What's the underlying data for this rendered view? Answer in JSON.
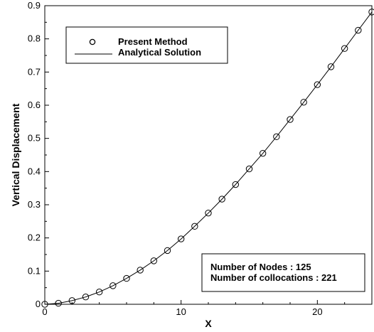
{
  "chart_data": {
    "type": "line",
    "xlabel": "X",
    "ylabel": "Vertical Displacement",
    "xlim": [
      0,
      24
    ],
    "ylim": [
      0,
      0.9
    ],
    "x_ticks": [
      0,
      10,
      20
    ],
    "x_tick_labels": [
      "0",
      "10",
      "20"
    ],
    "y_ticks": [
      0,
      0.1,
      0.2,
      0.3,
      0.4,
      0.5,
      0.6,
      0.7,
      0.8,
      0.9
    ],
    "y_tick_labels": [
      "0",
      "0.1",
      "0.2",
      "0.3",
      "0.4",
      "0.5",
      "0.6",
      "0.7",
      "0.8",
      "0.9"
    ],
    "grid": false,
    "legend_position": "top-left",
    "series": [
      {
        "name": "Present Method",
        "style": "markers",
        "marker": "circle",
        "x": [
          0,
          1,
          2,
          3,
          4,
          5,
          6,
          7,
          8,
          9,
          10,
          11,
          12,
          13,
          14,
          15,
          16,
          17,
          18,
          19,
          20,
          21,
          22,
          23,
          24
        ],
        "y": [
          0,
          0.003,
          0.011,
          0.022,
          0.037,
          0.056,
          0.078,
          0.103,
          0.131,
          0.162,
          0.197,
          0.235,
          0.275,
          0.317,
          0.361,
          0.408,
          0.455,
          0.505,
          0.557,
          0.609,
          0.662,
          0.716,
          0.771,
          0.826,
          0.881
        ]
      },
      {
        "name": "Analytical Solution",
        "style": "line",
        "x": [
          0,
          1,
          2,
          3,
          4,
          5,
          6,
          7,
          8,
          9,
          10,
          11,
          12,
          13,
          14,
          15,
          16,
          17,
          18,
          19,
          20,
          21,
          22,
          23,
          24
        ],
        "y": [
          0,
          0.003,
          0.011,
          0.022,
          0.037,
          0.056,
          0.078,
          0.103,
          0.131,
          0.162,
          0.197,
          0.235,
          0.275,
          0.317,
          0.361,
          0.408,
          0.455,
          0.505,
          0.557,
          0.609,
          0.662,
          0.716,
          0.771,
          0.826,
          0.881
        ]
      }
    ],
    "annotations": [
      "Number of Nodes : 125",
      "Number of collocations : 221"
    ]
  }
}
